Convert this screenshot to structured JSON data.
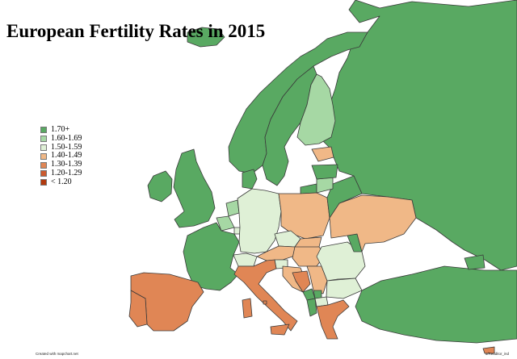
{
  "title": "European Fertility Rates in 2015",
  "legend": [
    {
      "label": "1.70+",
      "color": "#59a962"
    },
    {
      "label": "1.60-1.69",
      "color": "#a6d8a4"
    },
    {
      "label": "1.50-1.59",
      "color": "#dff0d6"
    },
    {
      "label": "1.40-1.49",
      "color": "#f0b887"
    },
    {
      "label": "1.30-1.39",
      "color": "#e08655"
    },
    {
      "label": "1.20-1.29",
      "color": "#cc5a2f"
    },
    {
      "label": "< 1.20",
      "color": "#b23a0f"
    }
  ],
  "credits": {
    "left": "Created with mapchart.net",
    "right": "u/Redditor_ind"
  },
  "regions": [
    {
      "id": "russia",
      "category": "1.70+"
    },
    {
      "id": "norway",
      "category": "1.70+"
    },
    {
      "id": "sweden",
      "category": "1.70+"
    },
    {
      "id": "finland",
      "category": "1.60-1.69"
    },
    {
      "id": "iceland",
      "category": "1.70+"
    },
    {
      "id": "ireland",
      "category": "1.70+"
    },
    {
      "id": "united-kingdom",
      "category": "1.70+"
    },
    {
      "id": "france",
      "category": "1.70+"
    },
    {
      "id": "spain",
      "category": "1.30-1.39"
    },
    {
      "id": "portugal",
      "category": "1.30-1.39"
    },
    {
      "id": "italy",
      "category": "1.30-1.39"
    },
    {
      "id": "germany",
      "category": "1.50-1.59"
    },
    {
      "id": "belgium",
      "category": "1.60-1.69"
    },
    {
      "id": "netherlands",
      "category": "1.60-1.69"
    },
    {
      "id": "denmark",
      "category": "1.70+"
    },
    {
      "id": "poland",
      "category": "1.40-1.49"
    },
    {
      "id": "czechia",
      "category": "1.50-1.59"
    },
    {
      "id": "austria",
      "category": "1.40-1.49"
    },
    {
      "id": "switzerland",
      "category": "1.50-1.59"
    },
    {
      "id": "slovakia",
      "category": "1.40-1.49"
    },
    {
      "id": "hungary",
      "category": "1.40-1.49"
    },
    {
      "id": "slovenia",
      "category": "1.50-1.59"
    },
    {
      "id": "croatia",
      "category": "1.40-1.49"
    },
    {
      "id": "bosnia",
      "category": "1.30-1.39"
    },
    {
      "id": "serbia",
      "category": "1.40-1.49"
    },
    {
      "id": "montenegro",
      "category": "1.70+"
    },
    {
      "id": "albania",
      "category": "1.70+"
    },
    {
      "id": "north-macedonia",
      "category": "1.50-1.59"
    },
    {
      "id": "kosovo",
      "category": "1.70+"
    },
    {
      "id": "romania",
      "category": "1.50-1.59"
    },
    {
      "id": "bulgaria",
      "category": "1.50-1.59"
    },
    {
      "id": "moldova",
      "category": "1.70+"
    },
    {
      "id": "ukraine",
      "category": "1.40-1.49"
    },
    {
      "id": "belarus",
      "category": "1.70+"
    },
    {
      "id": "lithuania",
      "category": "1.60-1.69"
    },
    {
      "id": "latvia",
      "category": "1.70+"
    },
    {
      "id": "estonia",
      "category": "1.40-1.49"
    },
    {
      "id": "greece",
      "category": "1.30-1.39"
    },
    {
      "id": "turkey",
      "category": "1.70+"
    },
    {
      "id": "cyprus",
      "category": "1.30-1.39"
    },
    {
      "id": "kaliningrad",
      "category": "1.70+"
    },
    {
      "id": "georgia",
      "category": "1.70+"
    },
    {
      "id": "malta",
      "category": "1.30-1.39"
    },
    {
      "id": "luxembourg",
      "category": "1.50-1.59"
    }
  ]
}
